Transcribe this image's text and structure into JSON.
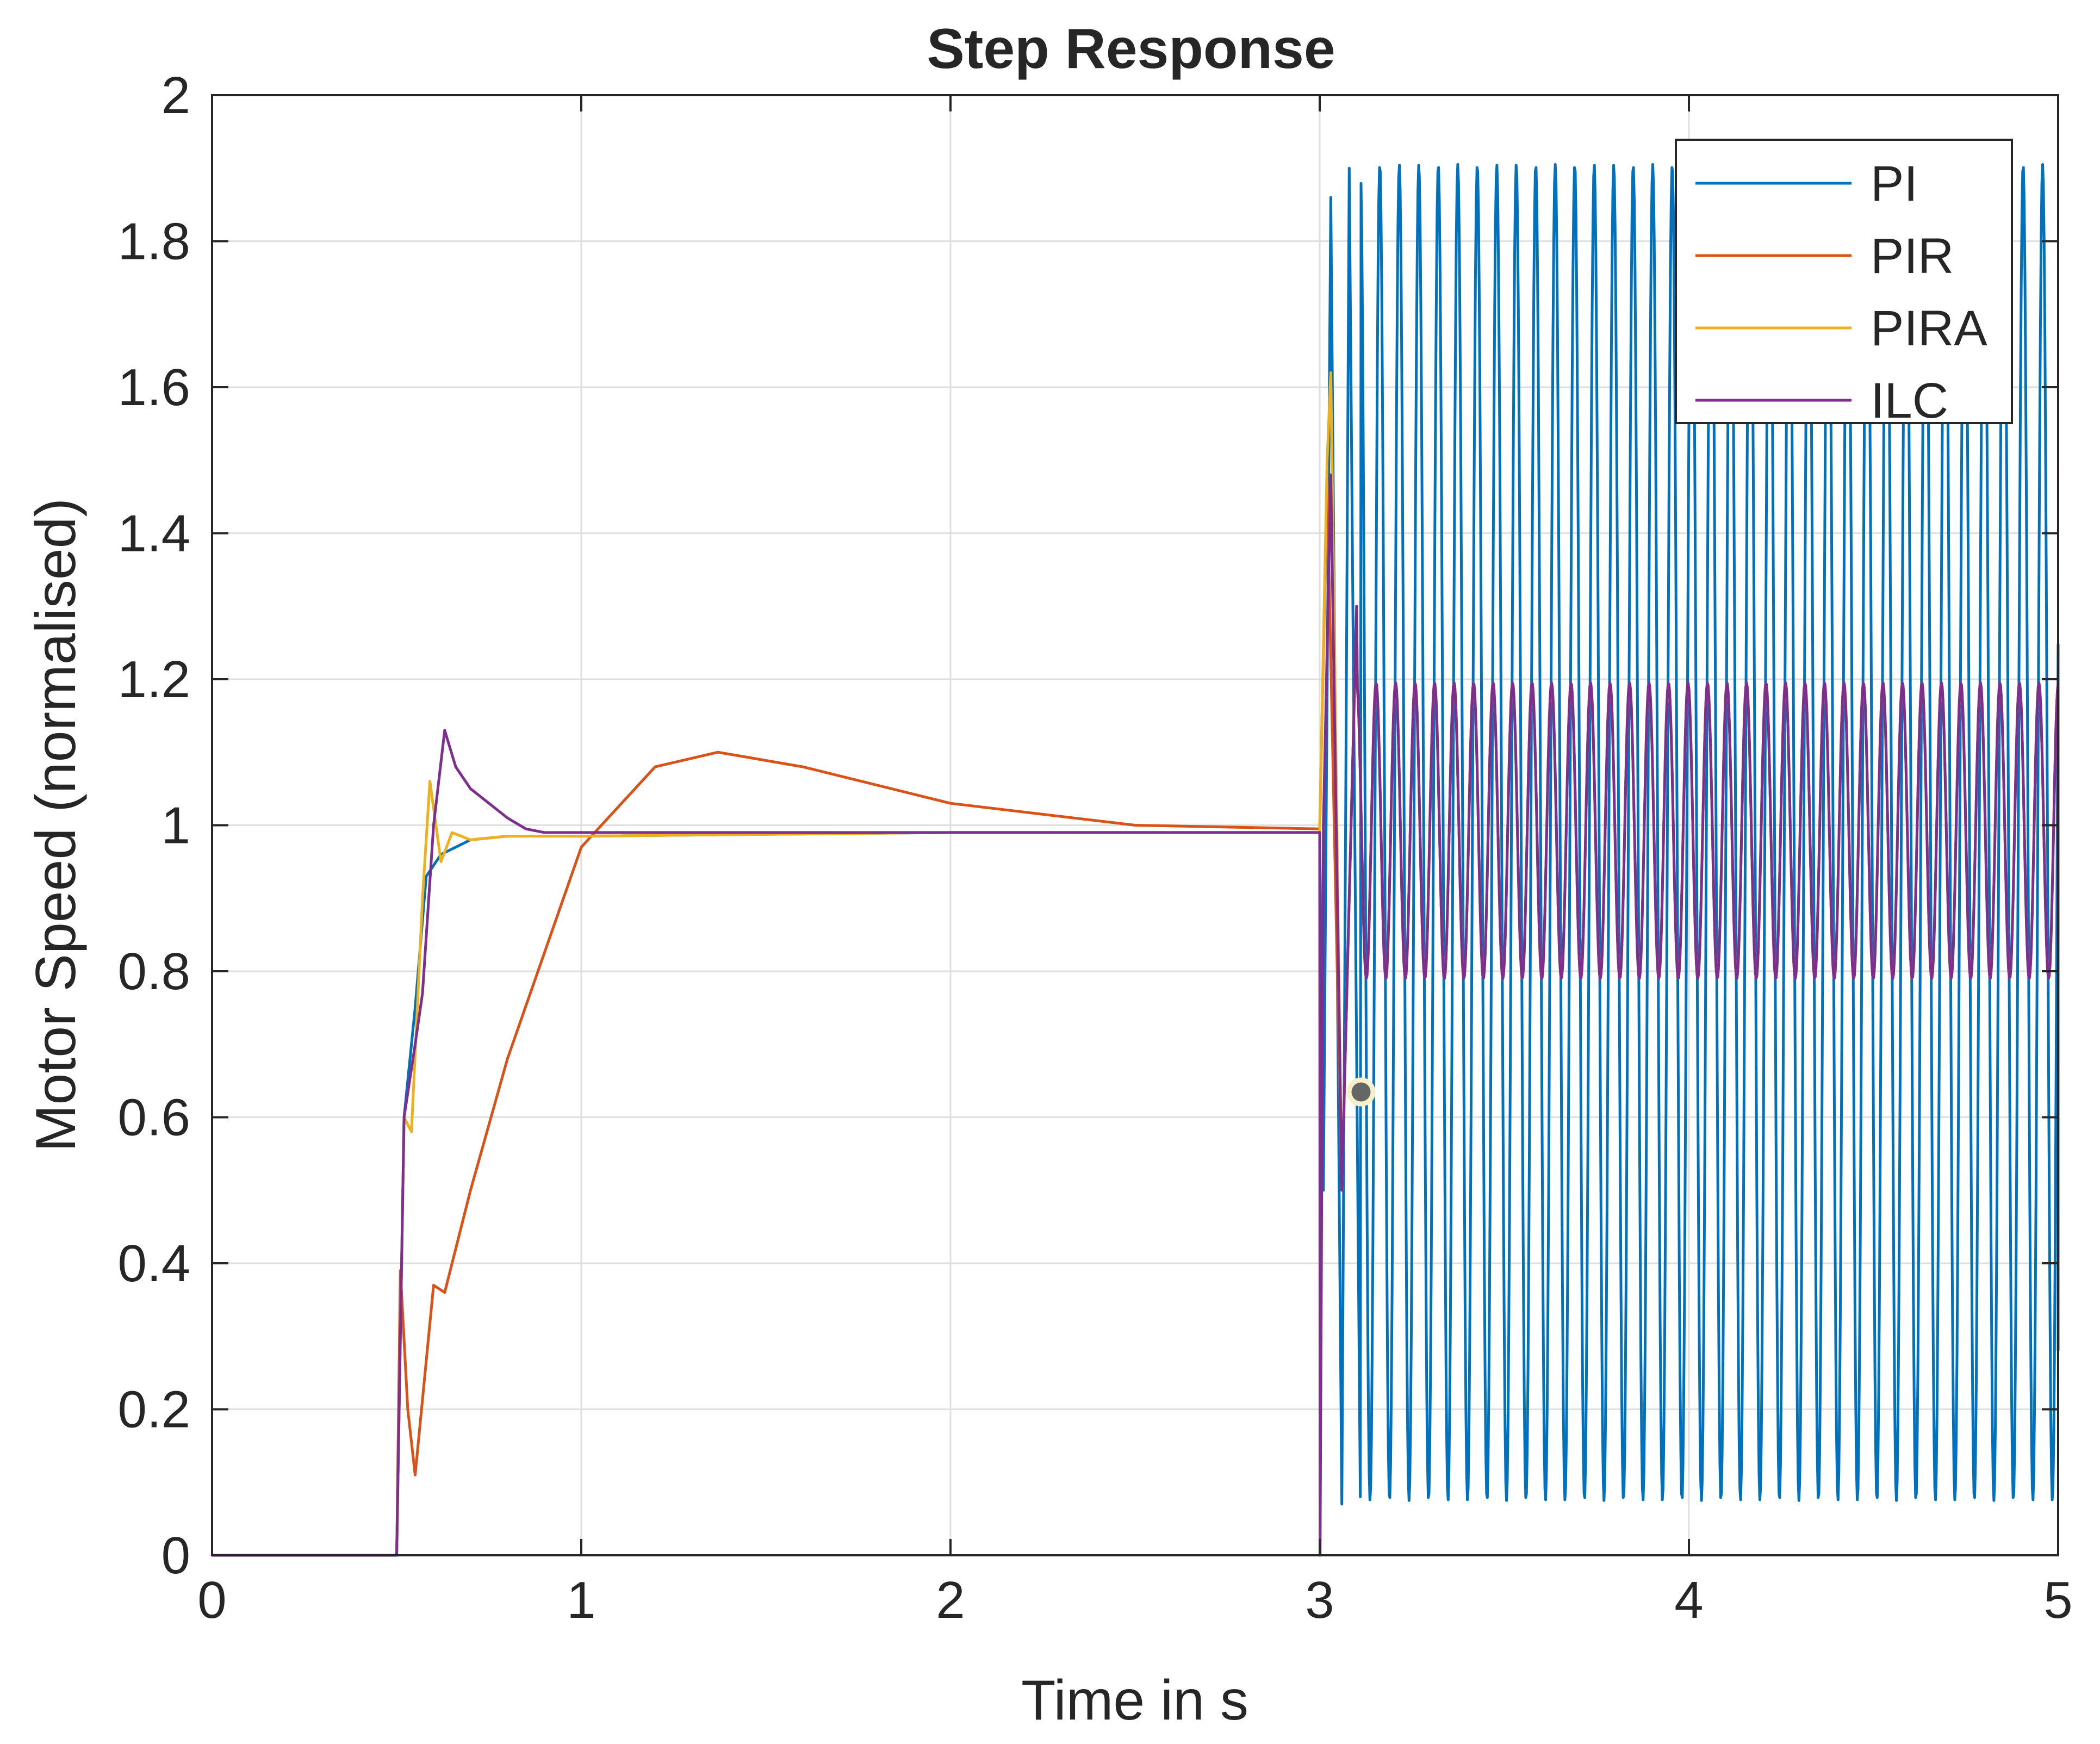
{
  "chart_data": {
    "type": "line",
    "title": "Step Response",
    "xlabel": "Time in s",
    "ylabel": "Motor Speed (normalised)",
    "xlim": [
      0,
      5
    ],
    "ylim": [
      0,
      2
    ],
    "xticks": [
      "0",
      "1",
      "2",
      "3",
      "4",
      "5"
    ],
    "yticks": [
      "0",
      "0.2",
      "0.4",
      "0.6",
      "0.8",
      "1",
      "1.2",
      "1.4",
      "1.6",
      "1.8",
      "2"
    ],
    "grid": true,
    "legend_position": "top-right",
    "series": [
      {
        "name": "PI",
        "color": "#0072BD",
        "shape": "setpoint 1 over 0.5–3 s, then sustained oscillation between about 0.07 and 1.91",
        "x": [
          0,
          0.5,
          0.52,
          0.55,
          0.58,
          0.62,
          0.7,
          0.8,
          1.0,
          2.0,
          3.0,
          3.01,
          3.03,
          3.06,
          3.08,
          3.11,
          5.0
        ],
        "y": [
          0,
          0,
          0.6,
          0.75,
          0.93,
          0.96,
          0.98,
          0.985,
          0.985,
          0.99,
          0.99,
          0.5,
          1.86,
          0.07,
          1.9,
          0.08,
          0.28
        ],
        "oscillation": {
          "start": 3.0,
          "end": 5.0,
          "period": 0.0528,
          "min": 0.075,
          "max": 1.905
        }
      },
      {
        "name": "PIR",
        "color": "#D95319",
        "shape": "slow rise with overshoot to 1.10 at about 1.37 s, then oscillation between about 0.79 and 1.19 after 3 s",
        "x": [
          0,
          0.5,
          0.51,
          0.53,
          0.55,
          0.6,
          0.63,
          0.7,
          0.8,
          1.0,
          1.2,
          1.37,
          1.6,
          2.0,
          2.5,
          3.0,
          3.02,
          3.06,
          3.1,
          5.0
        ],
        "y": [
          0,
          0,
          0.39,
          0.2,
          0.11,
          0.37,
          0.36,
          0.5,
          0.68,
          0.97,
          1.08,
          1.1,
          1.08,
          1.03,
          1.0,
          0.995,
          1.47,
          0.5,
          1.3,
          0.84
        ],
        "oscillation": {
          "start": 3.0,
          "end": 5.0,
          "period": 0.0528,
          "min": 0.79,
          "max": 1.195
        }
      },
      {
        "name": "PIRA",
        "color": "#EDB120",
        "shape": "fast rise with small overshoot to 1.06 near 0.58 s, settles near 0.985; spikes to 1.62 at 3.03 s then oscillates like PIR",
        "x": [
          0,
          0.5,
          0.52,
          0.54,
          0.57,
          0.59,
          0.62,
          0.65,
          0.7,
          0.8,
          1.0,
          2.0,
          3.0,
          3.02,
          3.03,
          3.06,
          3.1,
          5.0
        ],
        "y": [
          0,
          0,
          0.6,
          0.58,
          0.9,
          1.06,
          0.95,
          0.99,
          0.98,
          0.985,
          0.985,
          0.99,
          0.99,
          1.5,
          1.62,
          0.5,
          1.3,
          0.84
        ],
        "oscillation": {
          "start": 3.0,
          "end": 5.0,
          "period": 0.0528,
          "min": 0.79,
          "max": 1.195
        }
      },
      {
        "name": "ILC",
        "color": "#7E2F8E",
        "shape": "rise with peak 1.13 near 0.63 s and decaying spikes, settles at 0.99; drops to 0 at 3 s then oscillates between about 0.79 and 1.19",
        "x": [
          0,
          0.5,
          0.52,
          0.55,
          0.57,
          0.6,
          0.63,
          0.66,
          0.7,
          0.75,
          0.8,
          0.85,
          0.9,
          1.0,
          2.0,
          3.0,
          3.001,
          3.01,
          3.03,
          3.06,
          3.1,
          5.0
        ],
        "y": [
          0,
          0,
          0.6,
          0.7,
          0.77,
          1.0,
          1.13,
          1.08,
          1.05,
          1.03,
          1.01,
          0.995,
          0.99,
          0.99,
          0.99,
          0.99,
          0,
          1.0,
          1.48,
          0.5,
          1.3,
          0.84
        ],
        "oscillation": {
          "start": 3.0,
          "end": 5.0,
          "period": 0.0528,
          "min": 0.79,
          "max": 1.195
        }
      }
    ]
  }
}
